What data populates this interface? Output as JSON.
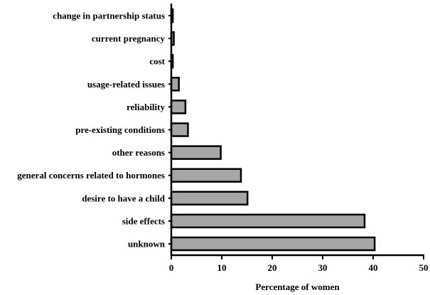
{
  "chart_data": {
    "type": "bar",
    "orientation": "horizontal",
    "categories": [
      "change in partnership status",
      "current pregnancy",
      "cost",
      "usage-related issues",
      "reliability",
      "pre-existing conditions",
      "other reasons",
      "general concerns related to hormones",
      "desire to have a child",
      "side effects",
      "unknown"
    ],
    "values": [
      0.3,
      0.5,
      0.3,
      1.5,
      2.8,
      3.3,
      9.8,
      13.8,
      15.1,
      38.3,
      40.3
    ],
    "title": "",
    "xlabel": "Percentage of women",
    "ylabel": "",
    "xlim": [
      0,
      50
    ],
    "xticks": [
      "0",
      "10",
      "20",
      "30",
      "40",
      "50"
    ],
    "grid": false,
    "bar_color": "#a6a6a9",
    "bar_edge_color": "#000000"
  }
}
